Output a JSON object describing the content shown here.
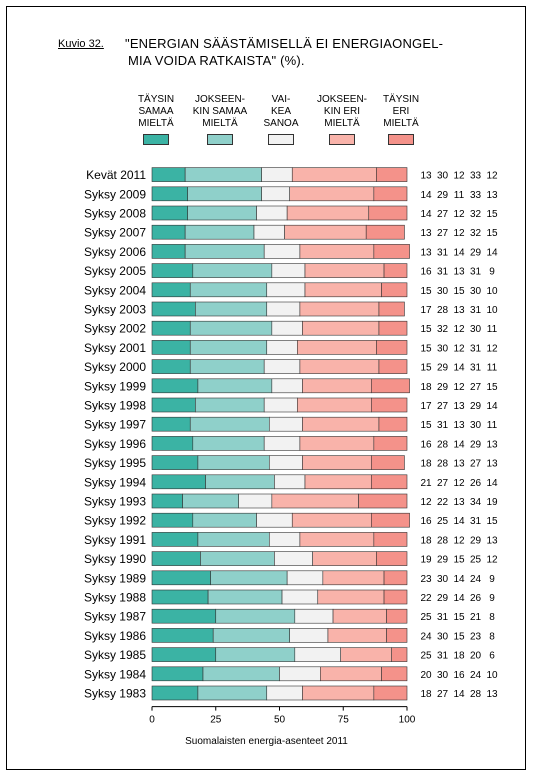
{
  "figure_label": "Kuvio 32.",
  "title_line1": "\"ENERGIAN SÄÄSTÄMISELLÄ EI ENERGIAONGEL-",
  "title_line2": "MIA VOIDA RATKAISTA\" (%).",
  "footer": "Suomalaisten energia-asenteet 2011",
  "legend": [
    {
      "label": "TÄYSIN\nSAMAA\nMIELTÄ",
      "color": "#3bb3a4"
    },
    {
      "label": "JOKSEEN-\nKIN SAMAA\nMIELTÄ",
      "color": "#8fd0ca"
    },
    {
      "label": "VAI-\nKEA\nSANOA",
      "color": "#f2f2f2"
    },
    {
      "label": "JOKSEEN-\nKIN ERI\nMIELTÄ",
      "color": "#f9b3aa"
    },
    {
      "label": "TÄYSIN\nERI\nMIELTÄ",
      "color": "#f4928a"
    }
  ],
  "chart_data": {
    "type": "bar",
    "orientation": "horizontal",
    "stacked": true,
    "categories": [
      "Kevät 2011",
      "Syksy 2009",
      "Syksy 2008",
      "Syksy 2007",
      "Syksy 2006",
      "Syksy 2005",
      "Syksy 2004",
      "Syksy 2003",
      "Syksy 2002",
      "Syksy 2001",
      "Syksy 2000",
      "Syksy 1999",
      "Syksy 1998",
      "Syksy 1997",
      "Syksy 1996",
      "Syksy 1995",
      "Syksy 1994",
      "Syksy 1993",
      "Syksy 1992",
      "Syksy 1991",
      "Syksy 1990",
      "Syksy 1989",
      "Syksy 1988",
      "Syksy 1987",
      "Syksy 1986",
      "Syksy 1985",
      "Syksy 1984",
      "Syksy 1983"
    ],
    "series": [
      {
        "name": "TÄYSIN SAMAA MIELTÄ",
        "values": [
          13,
          14,
          14,
          13,
          13,
          16,
          15,
          17,
          15,
          15,
          15,
          18,
          17,
          15,
          16,
          18,
          21,
          12,
          16,
          18,
          19,
          23,
          22,
          25,
          24,
          25,
          20,
          18
        ]
      },
      {
        "name": "JOKSEEN-KIN SAMAA MIELTÄ",
        "values": [
          30,
          29,
          27,
          27,
          31,
          31,
          30,
          28,
          32,
          30,
          29,
          29,
          27,
          31,
          28,
          28,
          27,
          22,
          25,
          28,
          29,
          30,
          29,
          31,
          30,
          31,
          30,
          27
        ]
      },
      {
        "name": "VAI-KEA SANOA",
        "values": [
          12,
          11,
          12,
          12,
          14,
          13,
          15,
          13,
          12,
          12,
          14,
          12,
          13,
          13,
          14,
          13,
          12,
          13,
          14,
          12,
          15,
          14,
          14,
          15,
          15,
          18,
          16,
          14
        ]
      },
      {
        "name": "JOKSEEN-KIN ERI MIELTÄ",
        "values": [
          33,
          33,
          32,
          32,
          29,
          31,
          30,
          31,
          30,
          31,
          31,
          27,
          29,
          30,
          29,
          27,
          26,
          34,
          31,
          29,
          25,
          24,
          26,
          21,
          23,
          20,
          24,
          28
        ]
      },
      {
        "name": "TÄYSIN ERI MIELTÄ",
        "values": [
          12,
          13,
          15,
          15,
          14,
          9,
          10,
          10,
          11,
          12,
          11,
          15,
          14,
          11,
          13,
          13,
          14,
          19,
          15,
          13,
          12,
          9,
          9,
          8,
          8,
          6,
          10,
          13
        ]
      }
    ],
    "xlim": [
      0,
      100
    ],
    "xticks": [
      0,
      25,
      50,
      75,
      100
    ],
    "grid": false,
    "legend_position": "top"
  }
}
